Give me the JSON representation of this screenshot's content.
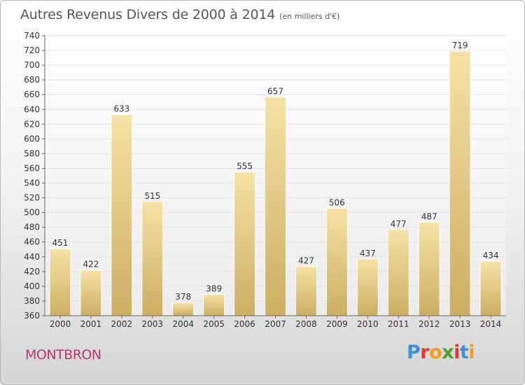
{
  "title": "Autres Revenus Divers de 2000 à 2014",
  "unit": "(en milliers d'€)",
  "place": "MONTBRON",
  "logo": {
    "letters": [
      "P",
      "r",
      "o",
      "x",
      "i",
      "t",
      "i"
    ],
    "colors": [
      "#3f8fd4",
      "#e2372b",
      "#f29b1f",
      "#4b9e2a",
      "#e2372b",
      "#3f8fd4",
      "#f29b1f"
    ]
  },
  "chart_data": {
    "type": "bar",
    "title": "Autres Revenus Divers de 2000 à 2014",
    "xlabel": "",
    "ylabel": "",
    "categories": [
      "2000",
      "2001",
      "2002",
      "2003",
      "2004",
      "2005",
      "2006",
      "2007",
      "2008",
      "2009",
      "2010",
      "2011",
      "2012",
      "2013",
      "2014"
    ],
    "values": [
      451,
      422,
      633,
      515,
      378,
      389,
      555,
      657,
      427,
      506,
      437,
      477,
      487,
      719,
      434
    ],
    "ylim": [
      360,
      740
    ],
    "yticks": [
      360,
      380,
      400,
      420,
      440,
      460,
      480,
      500,
      520,
      540,
      560,
      580,
      600,
      620,
      640,
      660,
      680,
      700,
      720,
      740
    ],
    "grid": "horizontal",
    "legend": "none",
    "bar_color": "#f0d58f"
  }
}
